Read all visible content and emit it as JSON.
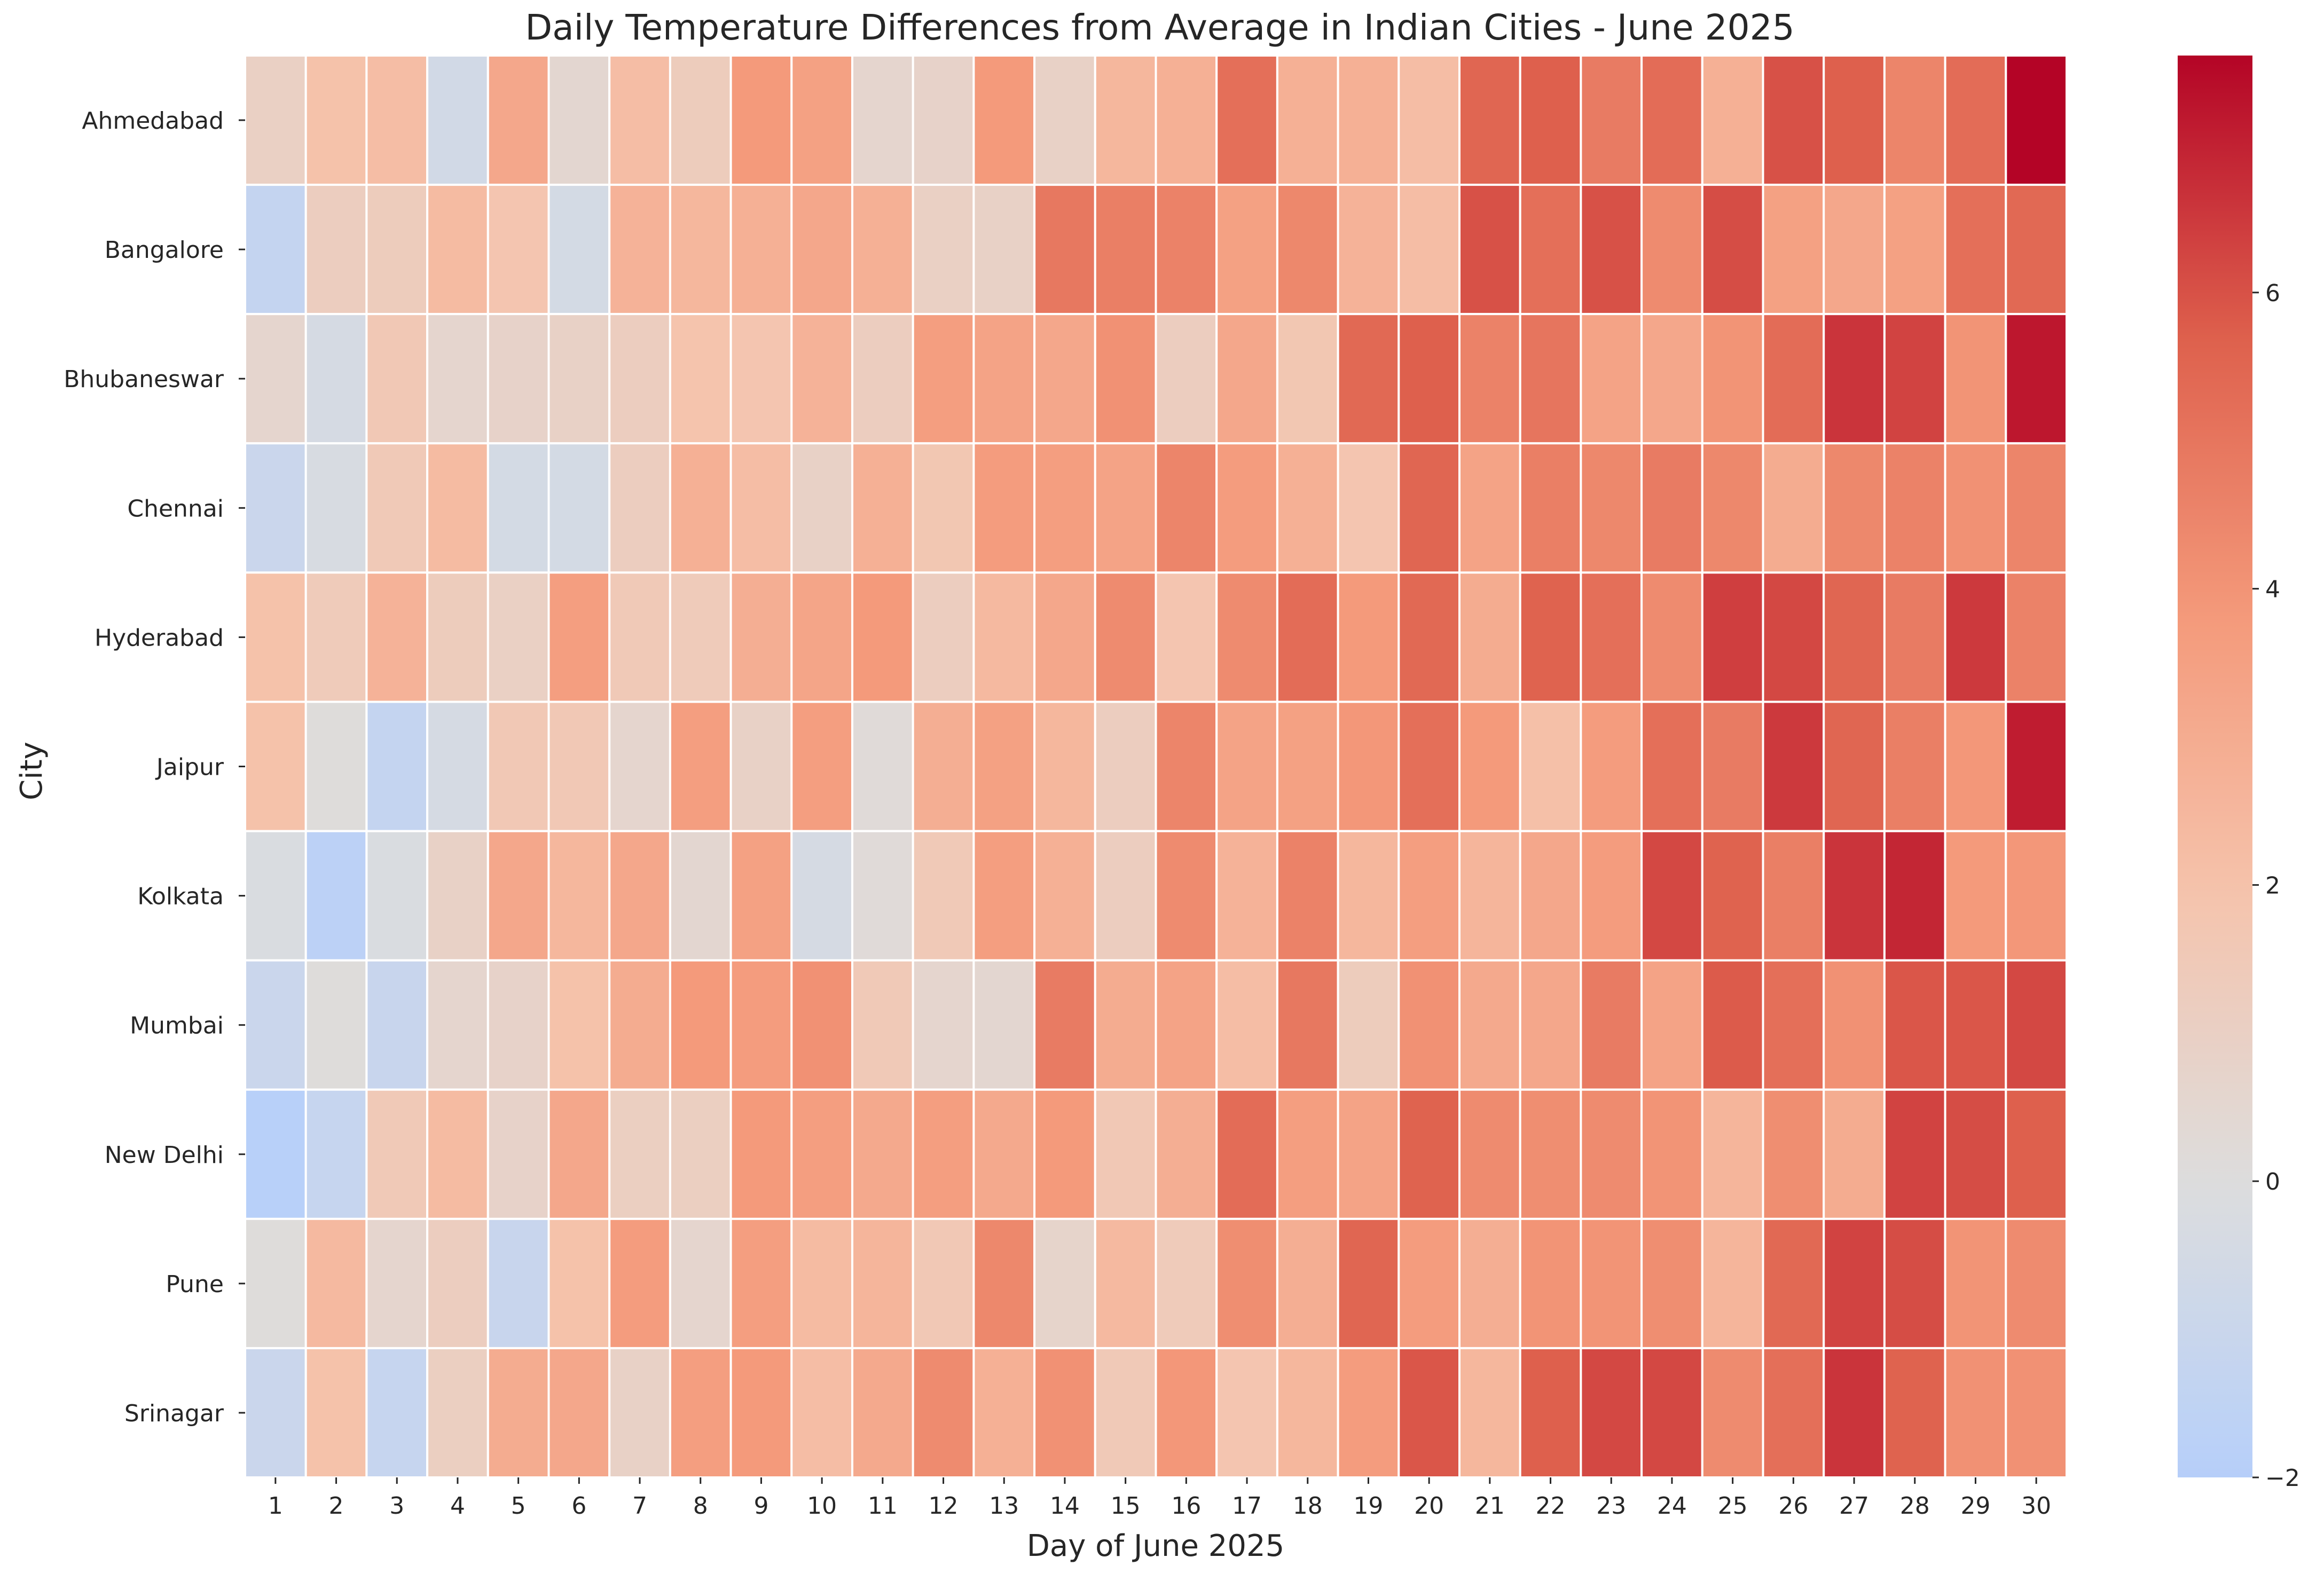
{
  "chart_data": {
    "type": "heatmap",
    "title": "Daily Temperature Differences from Average in Indian Cities - June 2025",
    "xlabel": "Day of June 2025",
    "ylabel": "City",
    "x": [
      "1",
      "2",
      "3",
      "4",
      "5",
      "6",
      "7",
      "8",
      "9",
      "10",
      "11",
      "12",
      "13",
      "14",
      "15",
      "16",
      "17",
      "18",
      "19",
      "20",
      "21",
      "22",
      "23",
      "24",
      "25",
      "26",
      "27",
      "28",
      "29",
      "30"
    ],
    "y": [
      "Ahmedabad",
      "Bangalore",
      "Bhubaneswar",
      "Chennai",
      "Hyderabad",
      "Jaipur",
      "Kolkata",
      "Mumbai",
      "New Delhi",
      "Pune",
      "Srinagar"
    ],
    "values": [
      [
        1.0,
        2.0,
        2.2,
        -0.6,
        3.2,
        0.5,
        2.2,
        1.3,
        3.8,
        3.5,
        0.6,
        0.8,
        3.8,
        0.9,
        2.5,
        2.8,
        5.2,
        2.8,
        2.8,
        2.2,
        5.5,
        5.7,
        4.8,
        5.3,
        2.8,
        6.0,
        5.7,
        4.5,
        5.3,
        7.6
      ],
      [
        -1.3,
        1.2,
        1.3,
        2.3,
        1.8,
        -0.5,
        2.7,
        2.5,
        2.8,
        3.2,
        2.8,
        1.0,
        0.9,
        4.9,
        4.7,
        4.6,
        3.5,
        4.4,
        2.7,
        2.2,
        6.0,
        5.2,
        6.0,
        4.3,
        6.1,
        3.5,
        3.2,
        3.5,
        5.2,
        5.4
      ],
      [
        0.6,
        -0.4,
        1.6,
        0.6,
        0.8,
        0.9,
        1.2,
        1.9,
        1.8,
        2.7,
        1.2,
        3.6,
        3.4,
        3.2,
        4.1,
        1.2,
        3.2,
        1.7,
        5.4,
        5.7,
        4.6,
        5.0,
        3.4,
        3.2,
        4.0,
        5.3,
        6.6,
        6.3,
        4.0,
        7.2
      ],
      [
        -1.0,
        -0.3,
        1.5,
        2.3,
        -0.5,
        -0.5,
        1.2,
        2.8,
        2.2,
        0.9,
        2.8,
        1.7,
        3.7,
        3.6,
        3.4,
        4.5,
        3.7,
        2.8,
        1.8,
        5.5,
        3.4,
        4.7,
        4.4,
        4.8,
        4.4,
        3.0,
        4.4,
        4.6,
        4.1,
        4.5
      ],
      [
        2.0,
        1.4,
        2.7,
        1.3,
        1.0,
        3.6,
        1.5,
        1.4,
        2.9,
        3.3,
        3.8,
        1.2,
        2.4,
        3.2,
        4.3,
        1.8,
        4.3,
        5.3,
        3.8,
        5.4,
        3.0,
        5.6,
        5.2,
        4.3,
        6.4,
        6.2,
        5.5,
        4.8,
        6.5,
        4.6
      ],
      [
        2.0,
        0.1,
        -1.3,
        -0.4,
        1.6,
        1.6,
        0.6,
        3.6,
        0.9,
        3.6,
        0.2,
        2.9,
        3.5,
        2.5,
        1.2,
        4.5,
        3.4,
        3.5,
        3.9,
        5.2,
        3.8,
        2.1,
        3.7,
        5.2,
        4.8,
        6.5,
        5.5,
        4.7,
        3.9,
        7.1
      ],
      [
        -0.2,
        -1.7,
        -0.2,
        0.9,
        3.2,
        2.5,
        3.2,
        0.5,
        3.5,
        -0.4,
        0.2,
        1.5,
        3.6,
        2.8,
        1.2,
        4.3,
        2.7,
        4.6,
        2.5,
        3.6,
        2.6,
        3.2,
        3.7,
        6.2,
        5.6,
        4.7,
        6.6,
        6.9,
        3.8,
        3.9
      ],
      [
        -1.0,
        0.1,
        -1.1,
        0.6,
        0.8,
        2.0,
        3.0,
        3.8,
        3.7,
        4.1,
        1.5,
        0.6,
        0.5,
        4.8,
        3.0,
        3.4,
        2.2,
        4.9,
        1.3,
        4.1,
        3.1,
        3.2,
        4.8,
        3.4,
        5.8,
        5.2,
        4.1,
        5.9,
        5.9,
        6.2
      ],
      [
        -1.9,
        -1.2,
        1.5,
        2.3,
        0.8,
        3.2,
        1.1,
        1.1,
        3.8,
        3.6,
        3.1,
        3.6,
        3.1,
        3.8,
        1.6,
        2.9,
        5.3,
        3.6,
        3.4,
        5.6,
        4.3,
        4.2,
        4.3,
        4.0,
        2.6,
        4.2,
        3.0,
        6.3,
        6.1,
        5.7
      ],
      [
        0.1,
        2.4,
        0.6,
        1.2,
        -1.1,
        2.0,
        3.7,
        0.6,
        3.6,
        2.3,
        2.6,
        1.6,
        4.4,
        0.7,
        2.4,
        1.4,
        4.2,
        2.9,
        5.5,
        3.7,
        2.9,
        4.0,
        4.0,
        4.2,
        2.6,
        5.4,
        6.3,
        6.1,
        4.0,
        4.3
      ],
      [
        -1.0,
        2.0,
        -1.2,
        1.1,
        3.0,
        3.2,
        0.9,
        3.6,
        3.8,
        2.2,
        3.1,
        4.3,
        2.8,
        4.1,
        1.5,
        3.9,
        1.8,
        2.5,
        3.7,
        5.9,
        2.5,
        5.7,
        6.2,
        6.2,
        4.3,
        5.2,
        6.6,
        5.6,
        4.1,
        4.1
      ]
    ],
    "colorbar": {
      "colormap": "coolwarm",
      "vmin": -2,
      "vmax": 7.6,
      "ticks": [
        "−2",
        "0",
        "2",
        "4",
        "6"
      ],
      "tick_values": [
        -2,
        0,
        2,
        4,
        6
      ]
    },
    "grid": false,
    "legend": "colorbar-right"
  }
}
